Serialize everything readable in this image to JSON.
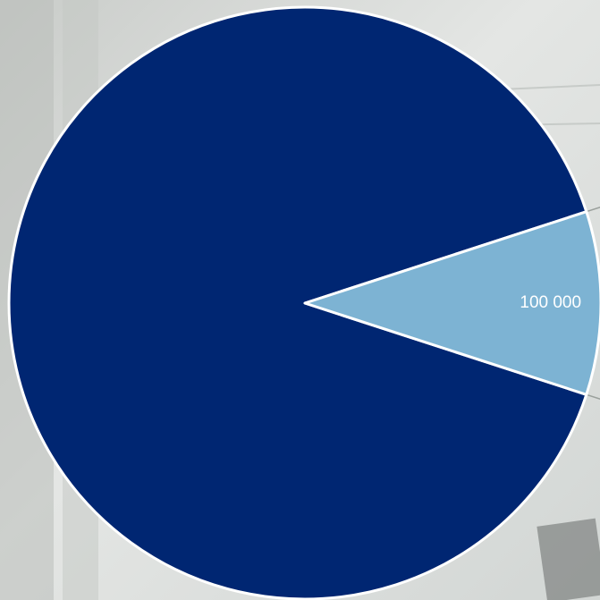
{
  "chart_data": {
    "type": "pie",
    "labels": [
      "",
      "100 000"
    ],
    "values": [
      900000,
      100000
    ],
    "data_labels": [
      "",
      "100 000"
    ],
    "colors": [
      "#002672",
      "#7db3d3"
    ],
    "slice_border_color": "#ffffff",
    "leader_line_color": "#9aa09c",
    "title": "",
    "legend": "none"
  }
}
